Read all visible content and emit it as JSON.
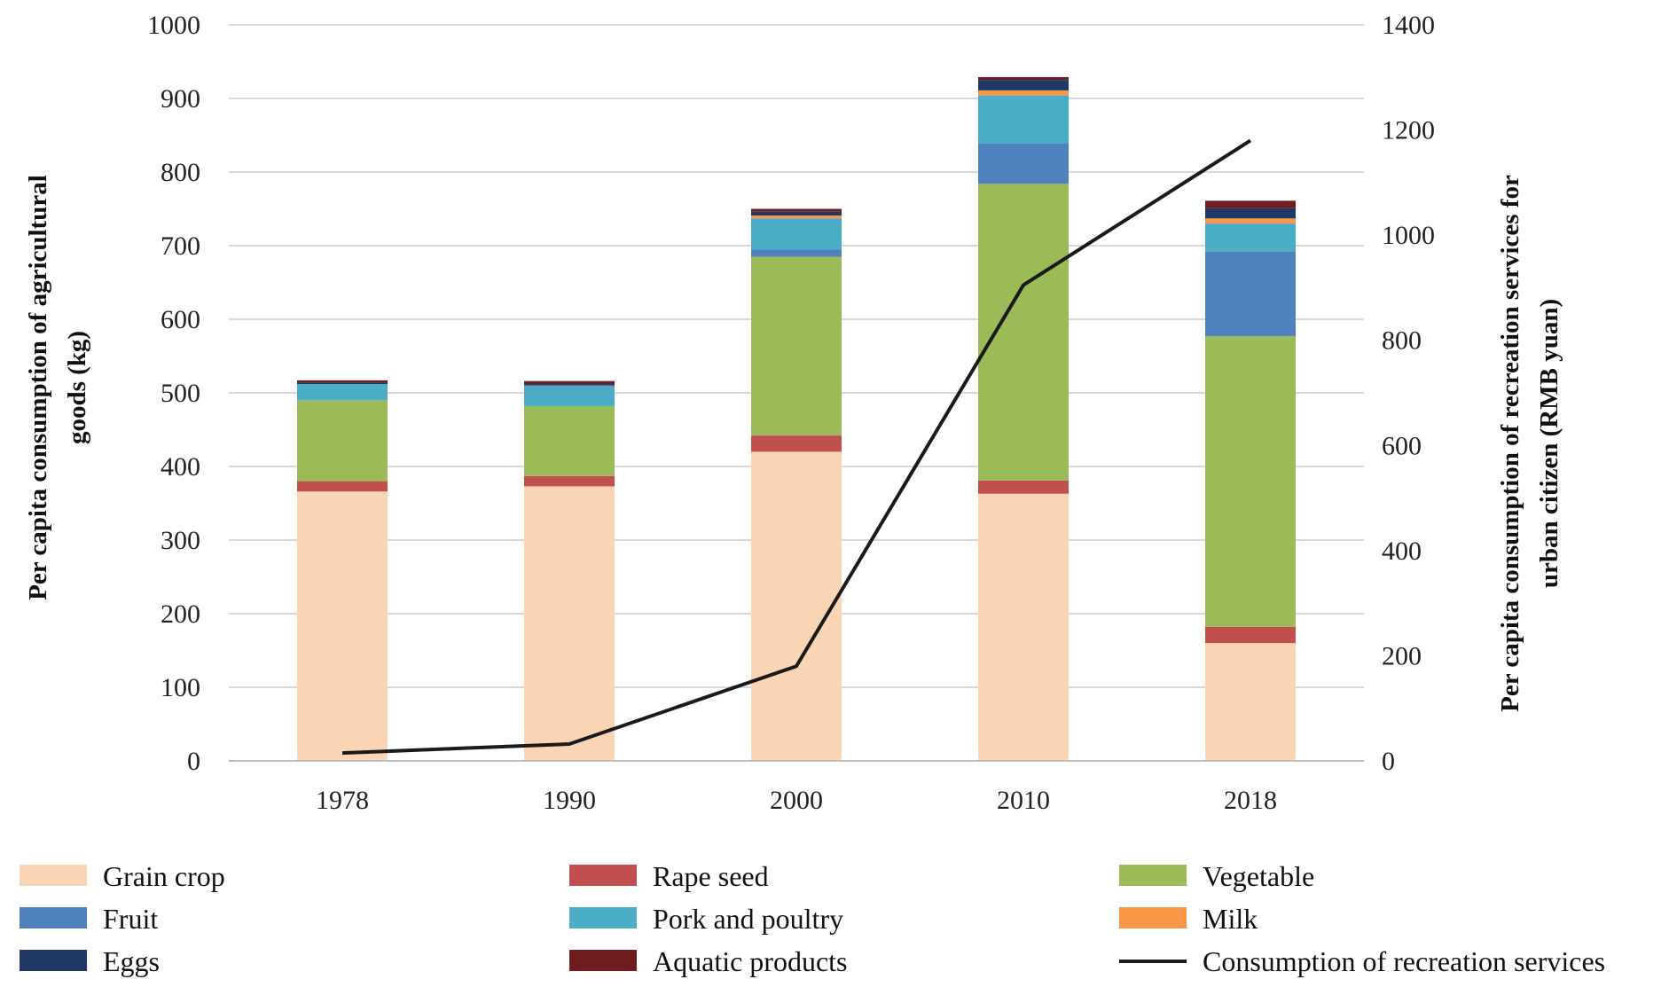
{
  "chart_data": {
    "type": "bar",
    "stacked": true,
    "categories": [
      "1978",
      "1990",
      "2000",
      "2010",
      "2018"
    ],
    "series": [
      {
        "name": "Grain crop",
        "color": "#f9d5b6",
        "values": [
          366,
          373,
          420,
          363,
          160
        ]
      },
      {
        "name": "Rape seed",
        "color": "#c0504d",
        "values": [
          14,
          14,
          22,
          18,
          22
        ]
      },
      {
        "name": "Vegetable",
        "color": "#9bbb59",
        "values": [
          110,
          95,
          243,
          403,
          395
        ]
      },
      {
        "name": "Fruit",
        "color": "#4f81bd",
        "values": [
          0,
          0,
          10,
          55,
          115
        ]
      },
      {
        "name": "Pork and poultry",
        "color": "#4bacc6",
        "values": [
          22,
          28,
          42,
          65,
          38
        ]
      },
      {
        "name": "Milk",
        "color": "#f79646",
        "values": [
          0,
          0,
          4,
          7,
          7
        ]
      },
      {
        "name": "Eggs",
        "color": "#1f3864",
        "values": [
          2,
          2,
          5,
          14,
          14
        ]
      },
      {
        "name": "Aquatic products",
        "color": "#6f1d1d",
        "values": [
          3,
          4,
          4,
          4,
          10
        ]
      }
    ],
    "line_series": {
      "name": "Consumption of recreation services",
      "color": "#1a1a1a",
      "axis": "right",
      "values": [
        15,
        32,
        180,
        905,
        1180
      ]
    },
    "ylabel_left": "Per capita consumption of agricultural goods  (kg)",
    "ylabel_right": "Per capita consumption of recreation services for urban citizen (RMB yuan)",
    "ylim_left": [
      0,
      1000
    ],
    "yticks_left": [
      0,
      100,
      200,
      300,
      400,
      500,
      600,
      700,
      800,
      900,
      1000
    ],
    "ylim_right": [
      0,
      1400
    ],
    "yticks_right": [
      0,
      200,
      400,
      600,
      800,
      1000,
      1200,
      1400
    ],
    "grid": true,
    "legend_position": "bottom"
  },
  "axis_title_left_line1": "Per capita consumption of agricultural",
  "axis_title_left_line2": "goods  (kg)",
  "axis_title_right_line1": "Per capita consumption of recreation services for",
  "axis_title_right_line2": "urban citizen (RMB yuan)"
}
